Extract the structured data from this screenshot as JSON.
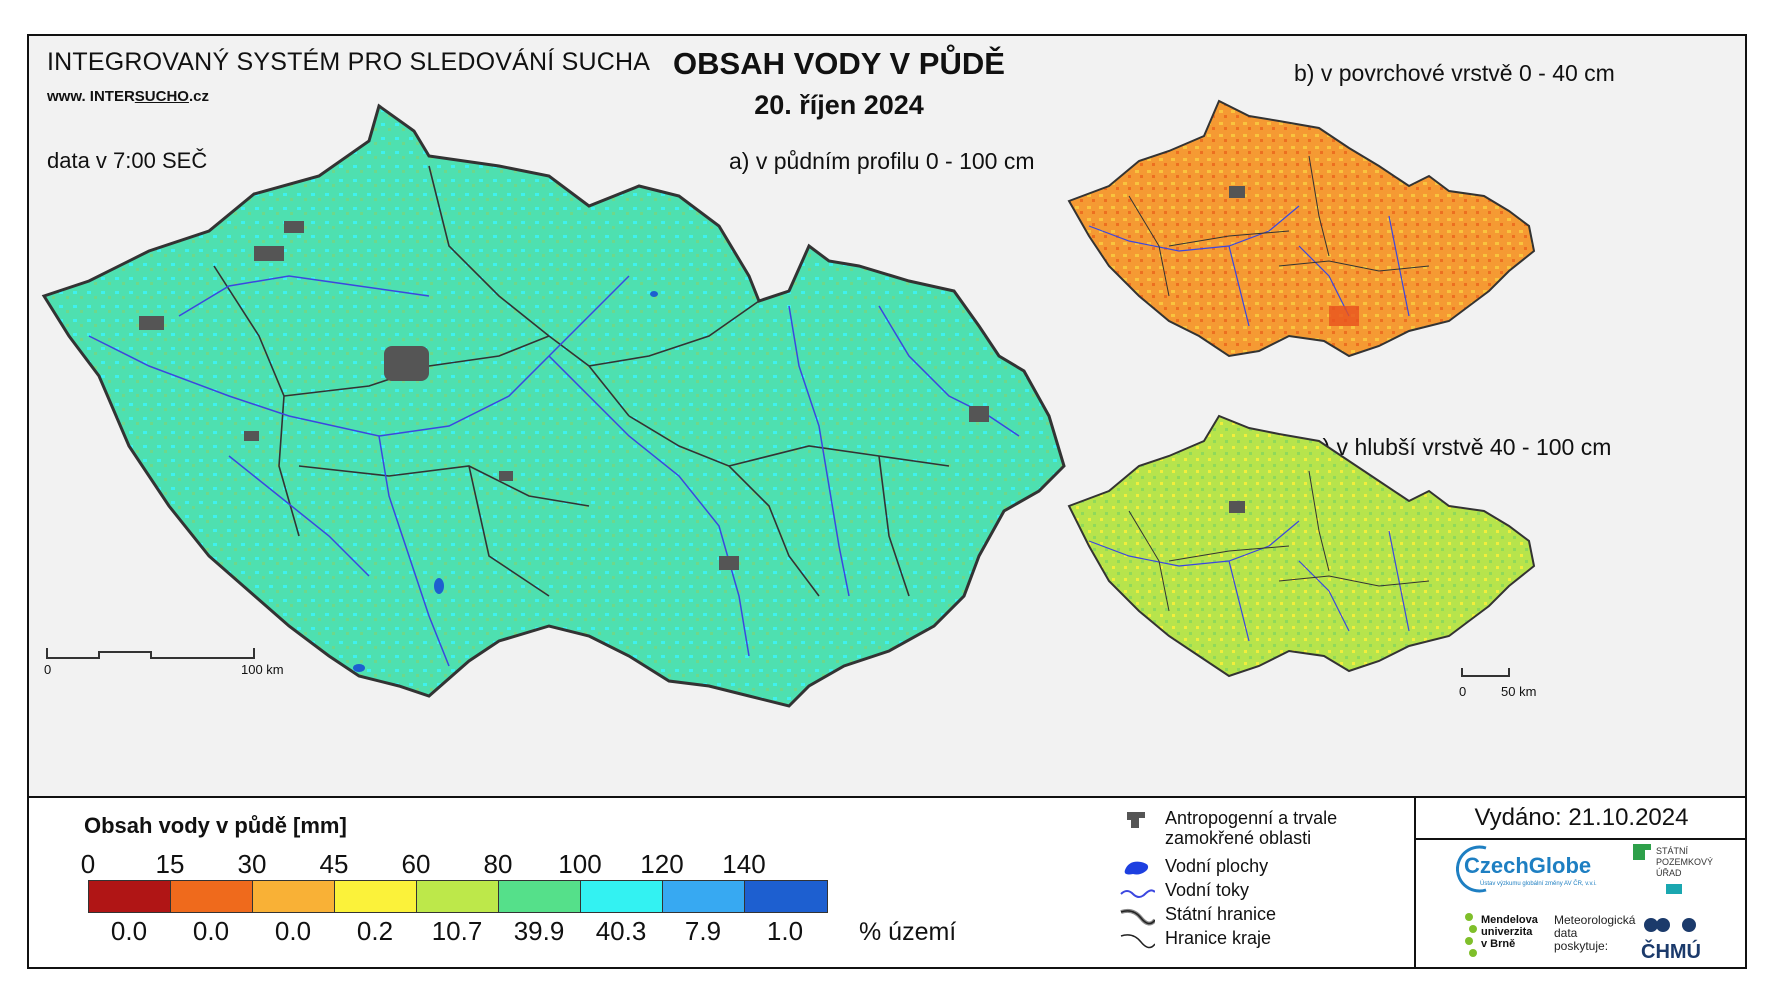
{
  "header": {
    "system_title": "INTEGROVANÝ SYSTÉM PRO SLEDOVÁNÍ SUCHA",
    "website_prefix": "www. INTER",
    "website_underlined": "SUCHO",
    "website_suffix": ".cz",
    "data_time": "data v 7:00 SEČ",
    "main_title": "OBSAH VODY V PŮDĚ",
    "date": "20. říjen 2024"
  },
  "maps": {
    "a_title": "a) v půdním profilu 0 - 100 cm",
    "b_title": "b) v povrchové vrstvě 0 - 40 cm",
    "c_title": "c) v hlubší vrstvě 40 - 100 cm",
    "a_scale": {
      "start": "0",
      "end": "100 km"
    },
    "bc_scale": {
      "start": "0",
      "end": "50 km"
    },
    "a_fill": "#52d8a8",
    "b_fill": "#f6a43a",
    "c_fill": "#b8e34d",
    "border_color": "#333333",
    "river_color": "#3b47e0",
    "urban_color": "#555555"
  },
  "legend": {
    "title": "Obsah vody v půdě  [mm]",
    "ticks": [
      "0",
      "15",
      "30",
      "45",
      "60",
      "80",
      "100",
      "120",
      "140"
    ],
    "bins": [
      {
        "color": "#b01515",
        "percent": "0.0"
      },
      {
        "color": "#ef6a1c",
        "percent": "0.0"
      },
      {
        "color": "#f9b136",
        "percent": "0.0"
      },
      {
        "color": "#fbf23a",
        "percent": "0.2"
      },
      {
        "color": "#bde84a",
        "percent": "10.7"
      },
      {
        "color": "#55e08a",
        "percent": "39.9"
      },
      {
        "color": "#33f2f2",
        "percent": "40.3"
      },
      {
        "color": "#37a9f2",
        "percent": "7.9"
      },
      {
        "color": "#1d5fd0",
        "percent": "1.0"
      }
    ],
    "percent_label": "% území"
  },
  "symbols": [
    {
      "icon": "urban-area-icon",
      "label": "Antropogenní a trvale\nzamokřené oblasti"
    },
    {
      "icon": "water-body-icon",
      "label": "Vodní plochy"
    },
    {
      "icon": "river-icon",
      "label": "Vodní toky"
    },
    {
      "icon": "state-border-icon",
      "label": "Státní hranice"
    },
    {
      "icon": "region-border-icon",
      "label": "Hranice kraje"
    }
  ],
  "footer": {
    "issued": "Vydáno: 21.10.2024",
    "czechglobe": "CzechGlobe",
    "czechglobe_sub": "Ústav výzkumu globální změny AV ČR, v.v.i.",
    "spu": "STÁTNÍ\nPOZEMKOVÝ\nÚŘAD",
    "mendel": "Mendelova\nuniverzita\nv Brně",
    "meteo": "Meteorologická\ndata\nposkytuje:",
    "chmu": "ČHMÚ"
  }
}
